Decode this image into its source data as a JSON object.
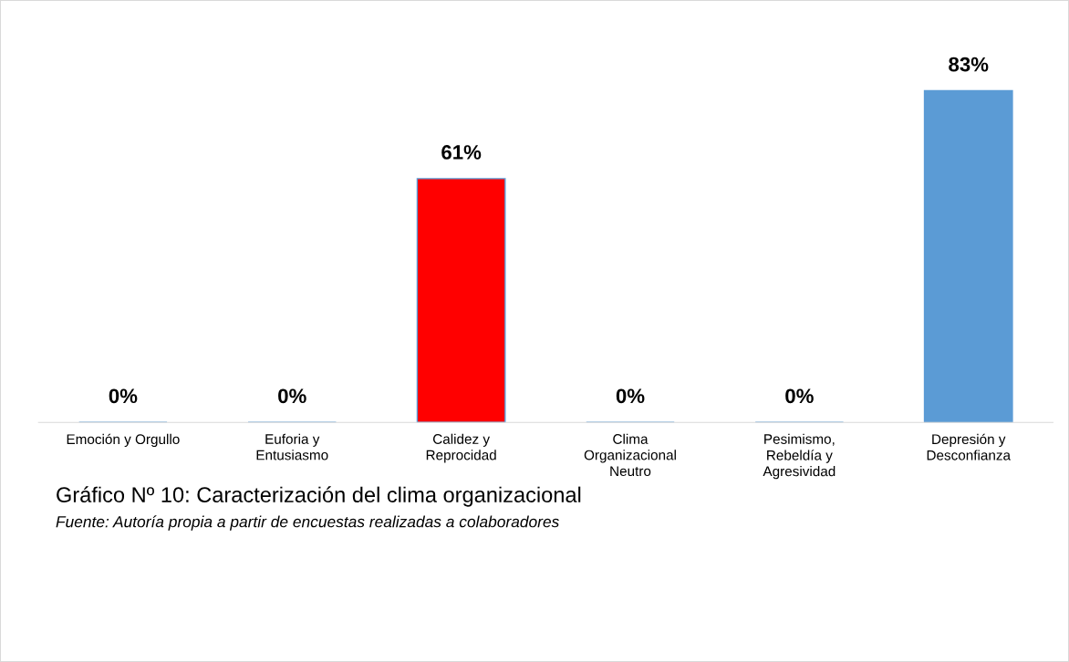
{
  "chart_data": {
    "type": "bar",
    "title": "Gráfico Nº 10: Caracterización del clima organizacional",
    "annotations": [
      "Fuente: Autoría propia a partir de encuestas realizadas a colaboradores"
    ],
    "categories": [
      "Emoción y Orgullo",
      "Euforia y\nEntusiasmo",
      "Calidez y\nReprocidad",
      "Clima\nOrganizacional\nNeutro",
      "Pesimismo,\nRebeldía y\nAgresividad",
      "Depresión y\nDesconfianza"
    ],
    "values": [
      0,
      0,
      61,
      0,
      0,
      83
    ],
    "value_labels": [
      "0%",
      "0%",
      "61%",
      "0%",
      "0%",
      "83%"
    ],
    "colors": [
      "#5b9bd5",
      "#5b9bd5",
      "#ff0000",
      "#5b9bd5",
      "#5b9bd5",
      "#5b9bd5"
    ],
    "tick_labels": "x",
    "grid": false,
    "legend": false
  }
}
